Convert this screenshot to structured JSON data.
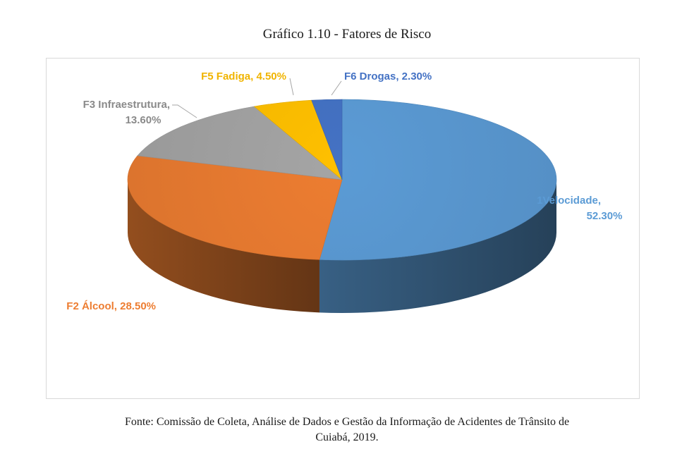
{
  "title": "Gráfico 1.10 - Fatores de Risco",
  "source_line1": "Fonte: Comissão de Coleta, Análise de Dados e Gestão da Informação de Acidentes de Trânsito de",
  "source_line2": "Cuiabá, 2019.",
  "chart_data": {
    "type": "pie",
    "title": "Gráfico 1.10 - Fatores de Risco",
    "style": "3d",
    "slices": [
      {
        "label": "F1Velocidade",
        "display_label_line1": "1Velocidade,",
        "display_label_line2": "52.30%",
        "value": 52.3,
        "display_value": "52.30%",
        "color": "#5b9bd5"
      },
      {
        "label": "F2 Álcool",
        "display_label_line1": "F2 Álcool, 28.50%",
        "value": 28.5,
        "display_value": "28.50%",
        "color": "#ed7d31"
      },
      {
        "label": "F3 Infraestrutura",
        "display_label_line1": "F3 Infraestrutura,",
        "display_label_line2": "13.60%",
        "value": 13.6,
        "display_value": "13.60%",
        "color": "#a5a5a5"
      },
      {
        "label": "F5 Fadiga",
        "display_label_line1": "F5 Fadiga, 4.50%",
        "value": 4.5,
        "display_value": "4.50%",
        "color": "#ffc000"
      },
      {
        "label": "F6 Drogas",
        "display_label_line1": "F6 Drogas, 2.30%",
        "value": 2.3,
        "display_value": "2.30%",
        "color": "#4472c4"
      }
    ],
    "legend": "none"
  }
}
